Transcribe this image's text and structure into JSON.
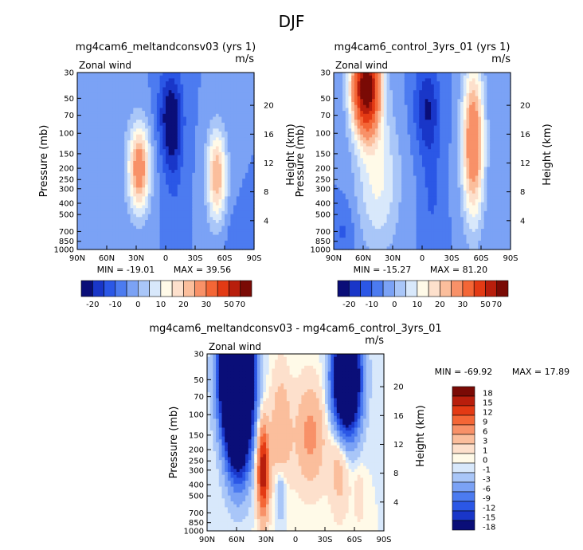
{
  "figure_title": "DJF",
  "chart_data": [
    {
      "type": "heatmap",
      "id": "p1",
      "title": "mg4cam6_meltandconsv03 (yrs 1)",
      "left_label": "Zonal wind",
      "right_label": "m/s",
      "xlabel": "",
      "ylabel": "Pressure (mb)",
      "ylabel_right": "Height (km)",
      "x_ticks": [
        "90N",
        "60N",
        "30N",
        "0",
        "30S",
        "60S",
        "90S"
      ],
      "y_ticks": [
        "30",
        "50",
        "70",
        "100",
        "150",
        "200",
        "250",
        "300",
        "400",
        "500",
        "700",
        "850",
        "1000"
      ],
      "y_right_ticks": [
        "20",
        "16",
        "12",
        "8",
        "4"
      ],
      "min": -19.01,
      "max": 39.56,
      "min_label": "MIN = -19.01",
      "max_label": "MAX = 39.56",
      "colorbar_labels": [
        "-20",
        "-10",
        "0",
        "10",
        "20",
        "30",
        "50",
        "70"
      ],
      "colorbar_colors": [
        "#0a0e78",
        "#1936c8",
        "#2b57e6",
        "#4c7bf0",
        "#7ba2f5",
        "#a9c6f8",
        "#d8e8fb",
        "#fffae8",
        "#fde0cc",
        "#fbbe9c",
        "#f89168",
        "#f46636",
        "#e33a14",
        "#b81e0c",
        "#7a0a05"
      ],
      "blobs": [
        {
          "lat": 60,
          "p": 120,
          "sx": 30,
          "sy": 1.6,
          "v": 1.5
        },
        {
          "lat": 27,
          "p": 200,
          "sx": 11,
          "sy": 0.85,
          "v": 36
        },
        {
          "lat": -52,
          "p": 230,
          "sx": 10,
          "sy": 0.9,
          "v": 30
        },
        {
          "lat": -5,
          "p": 70,
          "sx": 12,
          "sy": 0.9,
          "v": -19
        },
        {
          "lat": -8,
          "p": 180,
          "sx": 9,
          "sy": 1.0,
          "v": -7
        },
        {
          "lat": 70,
          "p": 700,
          "sx": 18,
          "sy": 0.6,
          "v": 4
        },
        {
          "lat": -75,
          "p": 800,
          "sx": 14,
          "sy": 0.5,
          "v": -4
        }
      ]
    },
    {
      "type": "heatmap",
      "id": "p2",
      "title": "mg4cam6_control_3yrs_01 (yrs 1)",
      "left_label": "Zonal wind",
      "right_label": "m/s",
      "xlabel": "",
      "ylabel": "Pressure (mb)",
      "ylabel_right": "Height (km)",
      "x_ticks": [
        "90N",
        "60N",
        "30N",
        "0",
        "30S",
        "60S",
        "90S"
      ],
      "y_ticks": [
        "30",
        "50",
        "70",
        "100",
        "150",
        "200",
        "250",
        "300",
        "400",
        "500",
        "700",
        "850",
        "1000"
      ],
      "y_right_ticks": [
        "20",
        "16",
        "12",
        "8",
        "4"
      ],
      "min": -15.27,
      "max": 81.2,
      "min_label": "MIN = -15.27",
      "max_label": "MAX = 81.20",
      "colorbar_labels": [
        "-20",
        "-10",
        "0",
        "10",
        "20",
        "30",
        "50",
        "70"
      ],
      "colorbar_colors": [
        "#0a0e78",
        "#1936c8",
        "#2b57e6",
        "#4c7bf0",
        "#7ba2f5",
        "#a9c6f8",
        "#d8e8fb",
        "#fffae8",
        "#fde0cc",
        "#fbbe9c",
        "#f89168",
        "#f46636",
        "#e33a14",
        "#b81e0c",
        "#7a0a05"
      ],
      "blobs": [
        {
          "lat": 57,
          "p": 40,
          "sx": 14,
          "sy": 0.9,
          "v": 80
        },
        {
          "lat": 45,
          "p": 250,
          "sx": 22,
          "sy": 1.4,
          "v": 16
        },
        {
          "lat": -52,
          "p": 120,
          "sx": 11,
          "sy": 1.5,
          "v": 40
        },
        {
          "lat": -5,
          "p": 60,
          "sx": 13,
          "sy": 0.9,
          "v": -15
        },
        {
          "lat": -10,
          "p": 300,
          "sx": 10,
          "sy": 1.2,
          "v": -6
        },
        {
          "lat": 80,
          "p": 700,
          "sx": 12,
          "sy": 0.6,
          "v": -6
        }
      ]
    },
    {
      "type": "heatmap",
      "id": "p3",
      "title": "mg4cam6_meltandconsv03 - mg4cam6_control_3yrs_01",
      "left_label": "Zonal wind",
      "right_label": "m/s",
      "xlabel": "",
      "ylabel": "Pressure (mb)",
      "ylabel_right": "Height (km)",
      "x_ticks": [
        "90N",
        "60N",
        "30N",
        "0",
        "30S",
        "60S",
        "90S"
      ],
      "y_ticks": [
        "30",
        "50",
        "70",
        "100",
        "150",
        "200",
        "250",
        "300",
        "400",
        "500",
        "700",
        "850",
        "1000"
      ],
      "y_right_ticks": [
        "20",
        "16",
        "12",
        "8",
        "4"
      ],
      "min": -69.92,
      "max": 17.89,
      "min_label": "MIN = -69.92",
      "max_label": "MAX = 17.89",
      "colorbar_labels": [
        "18",
        "15",
        "12",
        "9",
        "6",
        "3",
        "1",
        "0",
        "-1",
        "-3",
        "-6",
        "-9",
        "-12",
        "-15",
        "-18"
      ],
      "colorbar_colors": [
        "#7a0a05",
        "#b81e0c",
        "#e33a14",
        "#f46636",
        "#f89168",
        "#fbbe9c",
        "#fde0cc",
        "#fffae8",
        "#d8e8fb",
        "#a9c6f8",
        "#7ba2f5",
        "#4c7bf0",
        "#2b57e6",
        "#1936c8",
        "#0a0e78"
      ],
      "blobs": [
        {
          "lat": 60,
          "p": 45,
          "sx": 14,
          "sy": 1.1,
          "v": -70
        },
        {
          "lat": 58,
          "p": 150,
          "sx": 12,
          "sy": 1.0,
          "v": -20
        },
        {
          "lat": -52,
          "p": 50,
          "sx": 13,
          "sy": 1.0,
          "v": -40
        },
        {
          "lat": 33,
          "p": 300,
          "sx": 6,
          "sy": 0.9,
          "v": 18
        },
        {
          "lat": 15,
          "p": 150,
          "sx": 10,
          "sy": 1.2,
          "v": 6
        },
        {
          "lat": -15,
          "p": 150,
          "sx": 15,
          "sy": 1.0,
          "v": 7
        },
        {
          "lat": -45,
          "p": 250,
          "sx": 10,
          "sy": 1.0,
          "v": 5
        },
        {
          "lat": 15,
          "p": 450,
          "sx": 6,
          "sy": 0.6,
          "v": -5
        },
        {
          "lat": -65,
          "p": 500,
          "sx": 6,
          "sy": 0.6,
          "v": 2
        }
      ]
    }
  ]
}
